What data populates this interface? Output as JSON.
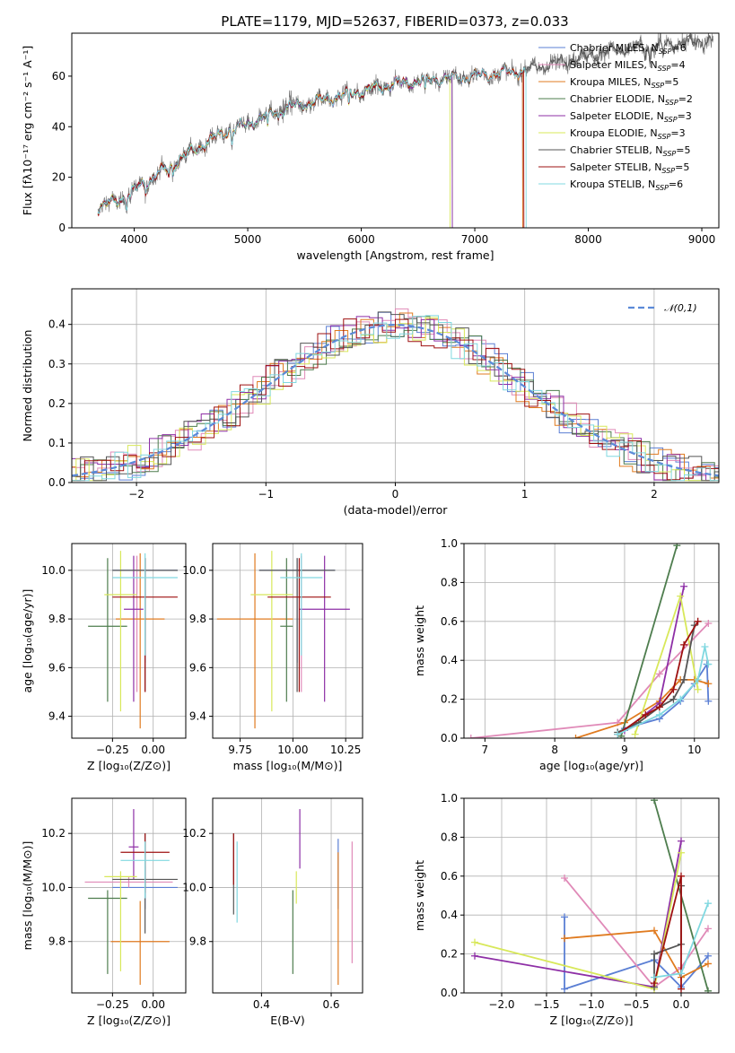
{
  "title": "PLATE=1179, MJD=52637, FIBERID=0373, z=0.033",
  "colors": {
    "Chabrier MILES": "#5b7fd4",
    "Salpeter MILES": "#e08ab8",
    "Kroupa MILES": "#e07b20",
    "Chabrier ELODIE": "#4e7d4e",
    "Salpeter ELODIE": "#8e2fa6",
    "Kroupa ELODIE": "#d8e85a",
    "Chabrier STELIB": "#555555",
    "Salpeter STELIB": "#9e1010",
    "Kroupa STELIB": "#80d8e0"
  },
  "chart_data": [
    {
      "id": "spectrum",
      "type": "line",
      "xlabel": "wavelength [Angstrom, rest frame]",
      "ylabel": "Flux [fλ10⁻¹⁷ erg cm⁻² s⁻¹ A⁻¹]",
      "xlim": [
        3450,
        9150
      ],
      "ylim": [
        0,
        77
      ],
      "xticks": [
        4000,
        5000,
        6000,
        7000,
        8000,
        9000
      ],
      "yticks": [
        0,
        20,
        40,
        60
      ],
      "grid": false,
      "legend_position": "right",
      "legend": [
        {
          "label": "Chabrier MILES, N",
          "sub": "SSP",
          "suffix": "=6",
          "model": "Chabrier MILES"
        },
        {
          "label": "Salpeter MILES, N",
          "sub": "SSP",
          "suffix": "=4",
          "model": "Salpeter MILES"
        },
        {
          "label": "Kroupa MILES, N",
          "sub": "SSP",
          "suffix": "=5",
          "model": "Kroupa MILES"
        },
        {
          "label": "Chabrier ELODIE, N",
          "sub": "SSP",
          "suffix": "=2",
          "model": "Chabrier ELODIE"
        },
        {
          "label": "Salpeter ELODIE, N",
          "sub": "SSP",
          "suffix": "=3",
          "model": "Salpeter ELODIE"
        },
        {
          "label": "Kroupa ELODIE, N",
          "sub": "SSP",
          "suffix": "=3",
          "model": "Kroupa ELODIE"
        },
        {
          "label": "Chabrier STELIB, N",
          "sub": "SSP",
          "suffix": "=5",
          "model": "Chabrier STELIB"
        },
        {
          "label": "Salpeter STELIB, N",
          "sub": "SSP",
          "suffix": "=5",
          "model": "Salpeter STELIB"
        },
        {
          "label": "Kroupa STELIB, N",
          "sub": "SSP",
          "suffix": "=6",
          "model": "Kroupa STELIB"
        }
      ],
      "continuum_anchors": [
        [
          3700,
          8
        ],
        [
          3900,
          12
        ],
        [
          4100,
          18
        ],
        [
          4300,
          24
        ],
        [
          4500,
          30
        ],
        [
          4800,
          38
        ],
        [
          5000,
          41
        ],
        [
          5300,
          47
        ],
        [
          5600,
          50
        ],
        [
          6000,
          54
        ],
        [
          6300,
          57
        ],
        [
          6700,
          59
        ],
        [
          7000,
          60
        ],
        [
          7400,
          62
        ],
        [
          7800,
          66
        ],
        [
          8200,
          70
        ],
        [
          8600,
          72
        ],
        [
          9000,
          74
        ]
      ],
      "data_range": [
        3680,
        9100
      ],
      "model_cutoffs": {
        "Kroupa ELODIE": 6780,
        "Chabrier ELODIE": 6800,
        "Salpeter ELODIE": 6800,
        "Kroupa MILES": 7420,
        "Salpeter MILES": 7420,
        "Chabrier MILES": 7420,
        "Salpeter STELIB": 7430,
        "Kroupa STELIB": 7450,
        "Chabrier STELIB": 9100
      }
    },
    {
      "id": "residuals",
      "type": "histogram",
      "xlabel": "(data-model)/error",
      "ylabel": "Normed distribution",
      "xlim": [
        -2.5,
        2.5
      ],
      "ylim": [
        0,
        0.49
      ],
      "xticks": [
        -2,
        -1,
        0,
        1,
        2
      ],
      "yticks": [
        0.0,
        0.1,
        0.2,
        0.3,
        0.4
      ],
      "grid": true,
      "legend_position": "top-right",
      "legend": [
        "𝒩(0,1)"
      ],
      "reference": {
        "name": "𝒩(0,1)",
        "style": "dashed",
        "color": "#5b8ad8"
      },
      "bin_width": 0.1
    },
    {
      "id": "age-vs-Z",
      "type": "scatter-errorbar",
      "xlabel": "Z [log₁₀(Z/Z⊙)]",
      "ylabel": "age  [log₁₀(age/yr)]",
      "xlim": [
        -0.5,
        0.2
      ],
      "ylim": [
        9.31,
        10.11
      ],
      "xticks": [
        -0.25,
        0.0
      ],
      "xticklabels": [
        "−0.25",
        "0.00"
      ],
      "yticks": [
        9.4,
        9.6,
        9.8,
        10.0
      ],
      "grid": true,
      "points": [
        {
          "model": "Chabrier MILES",
          "x": -0.05,
          "xerr": 0.2,
          "y": 10.0,
          "yerr": [
            0.38,
            0.05
          ]
        },
        {
          "model": "Salpeter MILES",
          "x": -0.1,
          "xerr": 0.02,
          "y": 10.0,
          "yerr": [
            0.5,
            0.06
          ]
        },
        {
          "model": "Kroupa MILES",
          "x": -0.08,
          "xerr": 0.15,
          "y": 9.8,
          "yerr": [
            0.45,
            0.27
          ]
        },
        {
          "model": "Chabrier ELODIE",
          "x": -0.28,
          "xerr": 0.12,
          "y": 9.77,
          "yerr": [
            0.31,
            0.28
          ]
        },
        {
          "model": "Salpeter ELODIE",
          "x": -0.12,
          "xerr": 0.06,
          "y": 9.84,
          "yerr": [
            0.38,
            0.22
          ]
        },
        {
          "model": "Kroupa ELODIE",
          "x": -0.2,
          "xerr": 0.1,
          "y": 9.9,
          "yerr": [
            0.48,
            0.18
          ]
        },
        {
          "model": "Chabrier STELIB",
          "x": -0.05,
          "xerr": 0.2,
          "y": 10.0,
          "yerr": [
            0.5,
            0.05
          ]
        },
        {
          "model": "Salpeter STELIB",
          "x": -0.05,
          "xerr": 0.2,
          "y": 9.89,
          "yerr": [
            0.39,
            0.16
          ]
        },
        {
          "model": "Kroupa STELIB",
          "x": -0.05,
          "xerr": 0.2,
          "y": 9.97,
          "yerr": [
            0.32,
            0.1
          ]
        }
      ]
    },
    {
      "id": "age-vs-mass",
      "type": "scatter-errorbar",
      "xlabel": "mass [log₁₀(M/M⊙)]",
      "ylabel": "",
      "xlim": [
        9.62,
        10.33
      ],
      "ylim": [
        9.31,
        10.11
      ],
      "xticks": [
        9.75,
        10.0,
        10.25
      ],
      "xticklabels": [
        "9.75",
        "10.00",
        "10.25"
      ],
      "yticks": [
        9.4,
        9.6,
        9.8,
        10.0
      ],
      "grid": true,
      "points": [
        {
          "model": "Chabrier MILES",
          "x": 10.02,
          "xerr": 0.18,
          "y": 10.0,
          "yerr": [
            0.38,
            0.05
          ]
        },
        {
          "model": "Salpeter MILES",
          "x": 10.04,
          "xerr": 0.02,
          "y": 10.0,
          "yerr": [
            0.5,
            0.06
          ]
        },
        {
          "model": "Kroupa MILES",
          "x": 9.82,
          "xerr": 0.18,
          "y": 9.8,
          "yerr": [
            0.45,
            0.27
          ]
        },
        {
          "model": "Chabrier ELODIE",
          "x": 9.97,
          "xerr": 0.03,
          "y": 9.77,
          "yerr": [
            0.31,
            0.28
          ]
        },
        {
          "model": "Salpeter ELODIE",
          "x": 10.15,
          "xerr": 0.12,
          "y": 9.84,
          "yerr": [
            0.38,
            0.22
          ]
        },
        {
          "model": "Kroupa ELODIE",
          "x": 9.9,
          "xerr": 0.1,
          "y": 9.9,
          "yerr": [
            0.48,
            0.18
          ]
        },
        {
          "model": "Chabrier STELIB",
          "x": 10.02,
          "xerr": 0.18,
          "y": 10.0,
          "yerr": [
            0.5,
            0.05
          ]
        },
        {
          "model": "Salpeter STELIB",
          "x": 10.03,
          "xerr": 0.15,
          "y": 9.89,
          "yerr": [
            0.39,
            0.16
          ]
        },
        {
          "model": "Kroupa STELIB",
          "x": 10.04,
          "xerr": 0.1,
          "y": 9.97,
          "yerr": [
            0.32,
            0.1
          ]
        }
      ]
    },
    {
      "id": "weight-vs-age",
      "type": "line",
      "xlabel": "age  [log₁₀(age/yr)]",
      "ylabel": "mass weight",
      "xlim": [
        6.7,
        10.35
      ],
      "ylim": [
        0.0,
        1.0
      ],
      "xticks": [
        7,
        8,
        9,
        10
      ],
      "yticks": [
        0.0,
        0.2,
        0.4,
        0.6,
        0.8,
        1.0
      ],
      "grid": true,
      "series": [
        {
          "model": "Chabrier MILES",
          "x": [
            9.0,
            9.5,
            9.8,
            10.0,
            10.18,
            10.2
          ],
          "y": [
            0.05,
            0.1,
            0.19,
            0.28,
            0.38,
            0.19
          ]
        },
        {
          "model": "Salpeter MILES",
          "x": [
            6.8,
            8.9,
            9.5,
            10.2
          ],
          "y": [
            0.0,
            0.08,
            0.33,
            0.59
          ]
        },
        {
          "model": "Kroupa MILES",
          "x": [
            8.3,
            9.0,
            9.5,
            9.8,
            10.0,
            10.2
          ],
          "y": [
            0.0,
            0.08,
            0.19,
            0.3,
            0.3,
            0.28
          ]
        },
        {
          "model": "Chabrier ELODIE",
          "x": [
            8.95,
            9.75
          ],
          "y": [
            0.01,
            0.99
          ]
        },
        {
          "model": "Salpeter ELODIE",
          "x": [
            9.0,
            9.5,
            9.85
          ],
          "y": [
            0.04,
            0.18,
            0.78
          ]
        },
        {
          "model": "Kroupa ELODIE",
          "x": [
            9.15,
            9.8,
            10.05
          ],
          "y": [
            0.02,
            0.73,
            0.25
          ]
        },
        {
          "model": "Chabrier STELIB",
          "x": [
            8.9,
            9.2,
            9.5,
            9.7,
            9.85,
            10.0
          ],
          "y": [
            0.03,
            0.08,
            0.16,
            0.2,
            0.3,
            0.58
          ]
        },
        {
          "model": "Salpeter STELIB",
          "x": [
            8.9,
            9.3,
            9.5,
            9.7,
            9.85,
            10.05
          ],
          "y": [
            0.02,
            0.12,
            0.16,
            0.25,
            0.48,
            0.6
          ]
        },
        {
          "model": "Kroupa STELIB",
          "x": [
            8.9,
            9.5,
            9.8,
            10.05,
            10.15,
            10.2
          ],
          "y": [
            0.02,
            0.12,
            0.2,
            0.3,
            0.47,
            0.38
          ]
        }
      ]
    },
    {
      "id": "mass-vs-Z",
      "type": "scatter-errorbar",
      "xlabel": "Z [log₁₀(Z/Z⊙)]",
      "ylabel": "mass [log₁₀(M/M⊙)]",
      "xlim": [
        -0.5,
        0.2
      ],
      "ylim": [
        9.61,
        10.33
      ],
      "xticks": [
        -0.25,
        0.0
      ],
      "xticklabels": [
        "−0.25",
        "0.00"
      ],
      "yticks": [
        9.8,
        10.0,
        10.2
      ],
      "grid": true,
      "points": [
        {
          "model": "Chabrier MILES",
          "x": -0.05,
          "xerr": 0.2,
          "y": 10.0,
          "yerr": [
            0.08,
            0.08
          ]
        },
        {
          "model": "Salpeter MILES",
          "x": -0.15,
          "xerr": 0.27,
          "y": 10.02,
          "yerr": [
            0.02,
            0.02
          ]
        },
        {
          "model": "Kroupa MILES",
          "x": -0.08,
          "xerr": 0.18,
          "y": 9.8,
          "yerr": [
            0.16,
            0.15
          ]
        },
        {
          "model": "Chabrier ELODIE",
          "x": -0.28,
          "xerr": 0.12,
          "y": 9.96,
          "yerr": [
            0.28,
            0.03
          ]
        },
        {
          "model": "Salpeter ELODIE",
          "x": -0.12,
          "xerr": 0.03,
          "y": 10.15,
          "yerr": [
            0.12,
            0.14
          ]
        },
        {
          "model": "Kroupa ELODIE",
          "x": -0.2,
          "xerr": 0.1,
          "y": 10.04,
          "yerr": [
            0.35,
            0.02
          ]
        },
        {
          "model": "Chabrier STELIB",
          "x": -0.05,
          "xerr": 0.2,
          "y": 10.03,
          "yerr": [
            0.2,
            0.17
          ]
        },
        {
          "model": "Salpeter STELIB",
          "x": -0.05,
          "xerr": 0.15,
          "y": 10.13,
          "yerr": [
            0.15,
            0.07
          ]
        },
        {
          "model": "Kroupa STELIB",
          "x": -0.05,
          "xerr": 0.15,
          "y": 10.1,
          "yerr": [
            0.14,
            0.07
          ]
        }
      ]
    },
    {
      "id": "mass-vs-EBV",
      "type": "scatter-errorbar",
      "xlabel": "E(B-V)",
      "ylabel": "",
      "xlim": [
        0.26,
        0.69
      ],
      "ylim": [
        9.61,
        10.33
      ],
      "xticks": [
        0.4,
        0.6
      ],
      "xticklabels": [
        "0.4",
        "0.6"
      ],
      "yticks": [
        9.8,
        10.0,
        10.2
      ],
      "grid": true,
      "points": [
        {
          "model": "Chabrier MILES",
          "x": 0.62,
          "xerr": 0,
          "y": 10.0,
          "yerr": [
            0.08,
            0.18
          ]
        },
        {
          "model": "Salpeter MILES",
          "x": 0.66,
          "xerr": 0,
          "y": 10.02,
          "yerr": [
            0.3,
            0.15
          ]
        },
        {
          "model": "Kroupa MILES",
          "x": 0.62,
          "xerr": 0,
          "y": 9.8,
          "yerr": [
            0.16,
            0.33
          ]
        },
        {
          "model": "Chabrier ELODIE",
          "x": 0.49,
          "xerr": 0,
          "y": 9.96,
          "yerr": [
            0.28,
            0.03
          ]
        },
        {
          "model": "Salpeter ELODIE",
          "x": 0.51,
          "xerr": 0,
          "y": 10.15,
          "yerr": [
            0.08,
            0.14
          ]
        },
        {
          "model": "Kroupa ELODIE",
          "x": 0.5,
          "xerr": 0,
          "y": 10.04,
          "yerr": [
            0.1,
            0.02
          ]
        },
        {
          "model": "Chabrier STELIB",
          "x": 0.32,
          "xerr": 0,
          "y": 10.03,
          "yerr": [
            0.13,
            0.17
          ]
        },
        {
          "model": "Salpeter STELIB",
          "x": 0.32,
          "xerr": 0,
          "y": 10.13,
          "yerr": [
            0.12,
            0.07
          ]
        },
        {
          "model": "Kroupa STELIB",
          "x": 0.33,
          "xerr": 0,
          "y": 10.1,
          "yerr": [
            0.23,
            0.07
          ]
        }
      ]
    },
    {
      "id": "weight-vs-Z",
      "type": "line",
      "xlabel": "Z [log₁₀(Z/Z⊙)]",
      "ylabel": "mass weight",
      "xlim": [
        -2.42,
        0.42
      ],
      "ylim": [
        0.0,
        1.0
      ],
      "xticks": [
        -2.0,
        -1.5,
        -1.0,
        -0.5,
        0.0
      ],
      "xticklabels": [
        "−2.0",
        "−1.5",
        "−1.0",
        "−0.5",
        "0.0"
      ],
      "yticks": [
        0.0,
        0.2,
        0.4,
        0.6,
        0.8,
        1.0
      ],
      "grid": true,
      "series": [
        {
          "model": "Chabrier MILES",
          "x": [
            -1.3,
            -1.3,
            -0.3,
            0.0,
            0.3
          ],
          "y": [
            0.39,
            0.02,
            0.17,
            0.03,
            0.19
          ]
        },
        {
          "model": "Salpeter MILES",
          "x": [
            -1.3,
            -0.3,
            0.0,
            0.3
          ],
          "y": [
            0.59,
            0.03,
            0.13,
            0.33
          ]
        },
        {
          "model": "Kroupa MILES",
          "x": [
            -1.3,
            -0.3,
            0.0,
            0.3
          ],
          "y": [
            0.28,
            0.32,
            0.08,
            0.15
          ]
        },
        {
          "model": "Chabrier ELODIE",
          "x": [
            -0.3,
            0.3
          ],
          "y": [
            0.99,
            0.01
          ]
        },
        {
          "model": "Salpeter ELODIE",
          "x": [
            -2.3,
            -0.3,
            0.0
          ],
          "y": [
            0.19,
            0.03,
            0.78
          ]
        },
        {
          "model": "Kroupa ELODIE",
          "x": [
            -2.3,
            -0.3,
            0.0
          ],
          "y": [
            0.26,
            0.02,
            0.72
          ]
        },
        {
          "model": "Chabrier STELIB",
          "x": [
            -0.3,
            -0.3,
            0.0,
            0.0
          ],
          "y": [
            0.03,
            0.2,
            0.25,
            0.55
          ]
        },
        {
          "model": "Salpeter STELIB",
          "x": [
            -0.3,
            0.0,
            0.0
          ],
          "y": [
            0.05,
            0.6,
            0.02
          ]
        },
        {
          "model": "Kroupa STELIB",
          "x": [
            -0.3,
            0.0,
            0.3
          ],
          "y": [
            0.08,
            0.1,
            0.46
          ]
        }
      ]
    }
  ]
}
